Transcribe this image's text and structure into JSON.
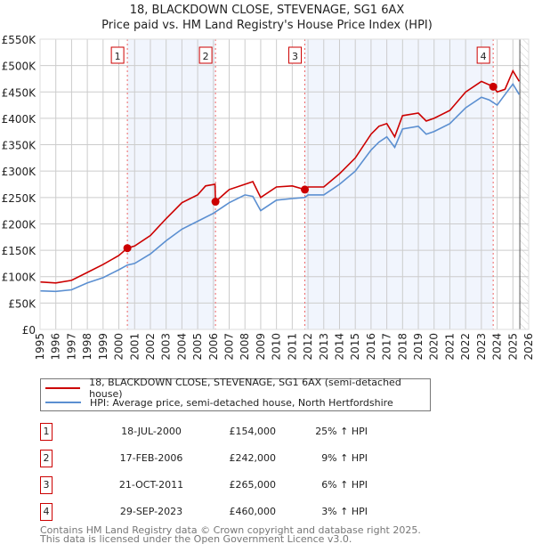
{
  "header": {
    "title": "18, BLACKDOWN CLOSE, STEVENAGE, SG1 6AX",
    "subtitle": "Price paid vs. HM Land Registry's House Price Index (HPI)"
  },
  "chart_data": {
    "type": "line",
    "title": "18, BLACKDOWN CLOSE, STEVENAGE, SG1 6AX",
    "xlim": [
      1995,
      2026
    ],
    "ylim": [
      0,
      550000
    ],
    "yticks": [
      0,
      50000,
      100000,
      150000,
      200000,
      250000,
      300000,
      350000,
      400000,
      450000,
      500000,
      550000
    ],
    "ytick_labels": [
      "£0",
      "£50K",
      "£100K",
      "£150K",
      "£200K",
      "£250K",
      "£300K",
      "£350K",
      "£400K",
      "£450K",
      "£500K",
      "£550K"
    ],
    "xticks": [
      1995,
      1996,
      1997,
      1998,
      1999,
      2000,
      2001,
      2002,
      2003,
      2004,
      2005,
      2006,
      2007,
      2008,
      2009,
      2010,
      2011,
      2012,
      2013,
      2014,
      2015,
      2016,
      2017,
      2018,
      2019,
      2020,
      2021,
      2022,
      2023,
      2024,
      2025,
      2026
    ],
    "xtick_labels": [
      "1995",
      "1996",
      "1997",
      "1998",
      "1999",
      "2000",
      "2001",
      "2002",
      "2003",
      "2004",
      "2005",
      "2006",
      "2007",
      "2008",
      "2009",
      "2010",
      "2011",
      "2012",
      "2013",
      "2014",
      "2015",
      "2016",
      "2017",
      "2018",
      "2019",
      "2020",
      "2021",
      "2022",
      "2023",
      "2024",
      "2025",
      "2026"
    ],
    "grid": true,
    "series": [
      {
        "name": "18, BLACKDOWN CLOSE, STEVENAGE, SG1 6AX (semi-detached house)",
        "color": "#cc0000",
        "x": [
          1995,
          1996,
          1997,
          1998,
          1999,
          2000,
          2000.54,
          2001,
          2002,
          2003,
          2004,
          2005,
          2005.5,
          2006.1,
          2006.13,
          2007,
          2008,
          2008.5,
          2009,
          2010,
          2011,
          2011.8,
          2012,
          2013,
          2014,
          2015,
          2016,
          2016.5,
          2017,
          2017.5,
          2018,
          2019,
          2019.5,
          2020,
          2021,
          2022,
          2023,
          2023.75,
          2024,
          2024.5,
          2025,
          2025.4
        ],
        "y": [
          90000,
          88000,
          93000,
          108000,
          123000,
          140000,
          154000,
          158000,
          178000,
          210000,
          240000,
          255000,
          272000,
          275000,
          242000,
          265000,
          275000,
          280000,
          250000,
          270000,
          272000,
          265000,
          270000,
          270000,
          295000,
          325000,
          370000,
          385000,
          390000,
          365000,
          405000,
          410000,
          395000,
          400000,
          415000,
          450000,
          470000,
          460000,
          450000,
          455000,
          490000,
          470000
        ]
      },
      {
        "name": "HPI: Average price, semi-detached house, North Hertfordshire",
        "color": "#5b8fd1",
        "x": [
          1995,
          1996,
          1997,
          1998,
          1999,
          2000,
          2000.54,
          2001,
          2002,
          2003,
          2004,
          2005,
          2006,
          2007,
          2008,
          2008.5,
          2009,
          2010,
          2011,
          2011.8,
          2012,
          2013,
          2014,
          2015,
          2016,
          2016.5,
          2017,
          2017.5,
          2018,
          2019,
          2019.5,
          2020,
          2021,
          2022,
          2023,
          2023.5,
          2024,
          2024.5,
          2025,
          2025.4
        ],
        "y": [
          73000,
          72000,
          75000,
          88000,
          98000,
          113000,
          122000,
          125000,
          143000,
          168000,
          190000,
          205000,
          220000,
          240000,
          255000,
          252000,
          225000,
          245000,
          248000,
          250000,
          255000,
          255000,
          275000,
          300000,
          340000,
          355000,
          365000,
          345000,
          380000,
          385000,
          370000,
          375000,
          390000,
          420000,
          440000,
          435000,
          425000,
          445000,
          465000,
          445000
        ]
      }
    ],
    "sales": [
      {
        "label": "1",
        "x": 2000.54,
        "y": 154000
      },
      {
        "label": "2",
        "x": 2006.13,
        "y": 242000
      },
      {
        "label": "3",
        "x": 2011.8,
        "y": 265000
      },
      {
        "label": "4",
        "x": 2023.75,
        "y": 460000
      }
    ],
    "shaded_ranges": [
      [
        2000.54,
        2006.13
      ],
      [
        2011.8,
        2023.75
      ]
    ],
    "forecast_from": 2025.44
  },
  "legend": {
    "items": [
      {
        "label": "18, BLACKDOWN CLOSE, STEVENAGE, SG1 6AX (semi-detached house)",
        "color": "#cc0000"
      },
      {
        "label": "HPI: Average price, semi-detached house, North Hertfordshire",
        "color": "#5b8fd1"
      }
    ]
  },
  "table": [
    {
      "num": "1",
      "date": "18-JUL-2000",
      "price": "£154,000",
      "hpi": "25% ↑ HPI"
    },
    {
      "num": "2",
      "date": "17-FEB-2006",
      "price": "£242,000",
      "hpi": "9% ↑ HPI"
    },
    {
      "num": "3",
      "date": "21-OCT-2011",
      "price": "£265,000",
      "hpi": "6% ↑ HPI"
    },
    {
      "num": "4",
      "date": "29-SEP-2023",
      "price": "£460,000",
      "hpi": "3% ↑ HPI"
    }
  ],
  "footer": {
    "line1": "Contains HM Land Registry data © Crown copyright and database right 2025.",
    "line2": "This data is licensed under the Open Government Licence v3.0."
  }
}
